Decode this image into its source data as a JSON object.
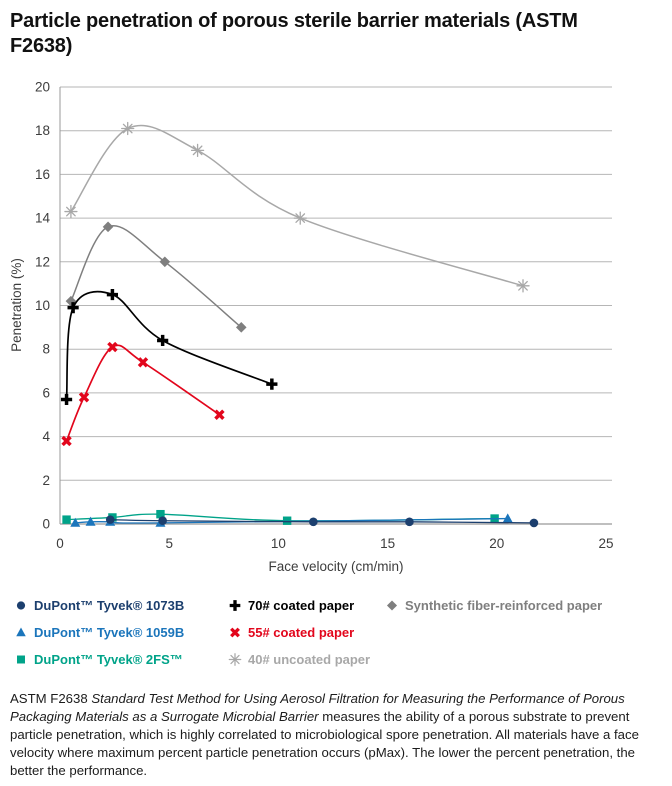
{
  "title": "Particle penetration of porous sterile barrier materials (ASTM F2638)",
  "chart_data": {
    "type": "line",
    "title": "Particle penetration of porous sterile barrier materials (ASTM F2638)",
    "xlabel": "Face velocity (cm/min)",
    "ylabel": "Penetration (%)",
    "xlim": [
      0,
      25
    ],
    "ylim": [
      0,
      20
    ],
    "xticks": [
      0,
      5,
      10,
      15,
      20,
      25
    ],
    "yticks": [
      0,
      2,
      4,
      6,
      8,
      10,
      12,
      14,
      16,
      18,
      20
    ],
    "grid": "horizontal",
    "grid_color": "#b6b6b6",
    "axis_color": "#999999",
    "legend_position": "below",
    "draw_order": [
      6,
      5,
      3,
      4,
      2,
      1,
      0
    ],
    "series": [
      {
        "name": "DuPont™ Tyvek® 1073B",
        "marker": "circle",
        "color": "#1c3f6e",
        "line_width": 1.3,
        "points": [
          [
            2.3,
            0.2
          ],
          [
            4.7,
            0.15
          ],
          [
            11.6,
            0.1
          ],
          [
            16.0,
            0.1
          ],
          [
            21.7,
            0.05
          ]
        ]
      },
      {
        "name": "DuPont™ Tyvek® 1059B",
        "marker": "triangle",
        "color": "#1b75bb",
        "line_width": 1.3,
        "points": [
          [
            0.7,
            0.05
          ],
          [
            1.4,
            0.1
          ],
          [
            2.3,
            0.1
          ],
          [
            4.6,
            0.05
          ],
          [
            20.5,
            0.25
          ]
        ]
      },
      {
        "name": "DuPont™ Tyvek® 2FS™",
        "marker": "square",
        "color": "#00a389",
        "line_width": 1.3,
        "points": [
          [
            0.3,
            0.2
          ],
          [
            2.4,
            0.3
          ],
          [
            4.6,
            0.45
          ],
          [
            10.4,
            0.15
          ],
          [
            19.9,
            0.25
          ]
        ]
      },
      {
        "name": "70# coated paper",
        "marker": "plus",
        "color": "#000000",
        "line_width": 1.7,
        "points": [
          [
            0.3,
            5.7
          ],
          [
            0.6,
            9.9
          ],
          [
            2.4,
            10.5
          ],
          [
            4.7,
            8.4
          ],
          [
            9.7,
            6.4
          ]
        ]
      },
      {
        "name": "55# coated paper",
        "marker": "x",
        "color": "#e2061c",
        "line_width": 1.7,
        "points": [
          [
            0.3,
            3.8
          ],
          [
            1.1,
            5.8
          ],
          [
            2.4,
            8.1
          ],
          [
            3.8,
            7.4
          ],
          [
            7.3,
            5.0
          ]
        ]
      },
      {
        "name": "Synthetic fiber-reinforced paper",
        "marker": "diamond",
        "color": "#7f7f7f",
        "line_width": 1.5,
        "points": [
          [
            0.5,
            10.2
          ],
          [
            2.2,
            13.6
          ],
          [
            4.8,
            12.0
          ],
          [
            8.3,
            9.0
          ]
        ]
      },
      {
        "name": "40# uncoated paper",
        "marker": "asterisk",
        "color": "#a8a8a8",
        "line_width": 1.5,
        "points": [
          [
            0.5,
            14.3
          ],
          [
            3.1,
            18.1
          ],
          [
            6.3,
            17.1
          ],
          [
            11.0,
            14.0
          ],
          [
            21.2,
            10.9
          ]
        ]
      }
    ]
  },
  "legend": {
    "columns": [
      {
        "items": [
          0,
          1,
          2
        ]
      },
      {
        "items": [
          3,
          4,
          6
        ]
      },
      {
        "items": [
          5
        ]
      }
    ]
  },
  "footnote": {
    "part1": "ASTM F2638 ",
    "part2": "Standard Test Method for Using Aerosol Filtration for Measuring the Performance of Porous Packaging Materials as a Surrogate Microbial Barrier",
    "part3": " measures the ability of a porous substrate to prevent particle penetration, which is highly correlated to microbiological spore penetration. All materials have a face velocity where maximum percent particle penetration occurs (pMax). The lower the percent penetration, the better the performance."
  }
}
